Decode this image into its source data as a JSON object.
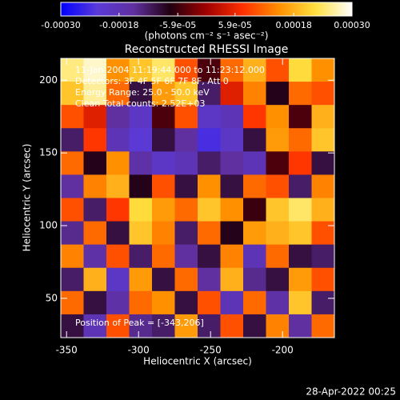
{
  "chart_data": {
    "type": "image",
    "title": "Reconstructed RHESSI Image",
    "xlabel": "Heliocentric X (arcsec)",
    "ylabel": "Heliocentric Y (arcsec)",
    "xlim": [
      -354,
      -164
    ],
    "ylim": [
      23,
      215
    ],
    "xticks": [
      -350,
      -300,
      -250,
      -200
    ],
    "yticks": [
      50,
      100,
      150,
      200
    ],
    "colorbar_label": "(photons cm⁻² s⁻¹ asec⁻²)",
    "colorbar_lim": [
      -0.0003,
      0.0003
    ],
    "colorbar_ticks": [
      {
        "value": -0.0003,
        "label": "-0.00030"
      },
      -0.00018,
      {
        "value": -5.9e-05,
        "label": "-5.9e-05"
      },
      {
        "value": 5.9e-05,
        "label": "5.9e-05"
      },
      0.00018,
      {
        "value": 0.0003,
        "label": "0.00030"
      }
    ],
    "colorscale": [
      "#0000ff",
      "#5a3ad8",
      "#6030a0",
      "#200010",
      "#a00000",
      "#ff3000",
      "#ff9000",
      "#ffe040",
      "#ffffff"
    ],
    "annotations": [
      "11-Jan-2004 11:19:44.000 to 11:23:12.000",
      "Detectors: 3F 4F 5F 6F 7F 8F, Att 0",
      "Energy Range: 25.0 - 50.0 keV",
      "Clean     Total counts: 2.52E+03",
      "Position of Peak = [-343,206]"
    ],
    "timestamp": "28-Apr-2022 00:25",
    "z": [
      [
        0.00025,
        0.00028,
        0.00015,
        0.0002,
        0.00024,
        0.0001,
        -5e-05,
        0.00012,
        0.00018,
        0.0001,
        0.00022,
        0.00015
      ],
      [
        0.0002,
        0.00026,
        0.00012,
        -0.0001,
        0.00016,
        0.0002,
        -0.00012,
        5e-05,
        0.00014,
        -8e-05,
        0.00012,
        0.0001
      ],
      [
        0.0001,
        5e-05,
        -0.00015,
        -0.0002,
        -5e-05,
        0.0001,
        -0.0002,
        -0.00018,
        8e-05,
        0.00015,
        -5e-05,
        0.00018
      ],
      [
        -0.00012,
        8e-05,
        -0.00018,
        -0.00022,
        -0.0001,
        -0.00015,
        -0.00024,
        -0.0002,
        -0.0001,
        0.00016,
        0.00012,
        0.0002
      ],
      [
        0.00012,
        -8e-05,
        0.00015,
        -0.00016,
        -0.0002,
        -0.00018,
        -0.00012,
        -0.00015,
        -0.00018,
        -5e-05,
        8e-05,
        -0.0001
      ],
      [
        -0.00015,
        0.00014,
        0.00018,
        -8e-05,
        0.0001,
        -0.0001,
        0.00015,
        -0.0001,
        0.00012,
        0.0001,
        -0.00012,
        0.00014
      ],
      [
        0.0001,
        -0.00012,
        8e-05,
        0.00022,
        0.00016,
        0.00012,
        0.0002,
        0.00015,
        -6e-05,
        0.0002,
        0.00024,
        0.00018
      ],
      [
        -0.00014,
        0.00012,
        -0.0001,
        0.0002,
        0.00014,
        -0.00012,
        0.00012,
        -8e-05,
        0.00016,
        0.00018,
        0.0002,
        0.0001
      ],
      [
        0.00014,
        -0.00016,
        0.0001,
        -0.00012,
        0.00012,
        -0.00015,
        -0.0001,
        0.00014,
        -0.00018,
        0.00012,
        -0.0001,
        -0.00012
      ],
      [
        -0.00012,
        0.00018,
        -0.0002,
        0.00016,
        -0.0001,
        0.00012,
        -0.00015,
        0.00018,
        -0.00014,
        -0.0001,
        0.00016,
        0.0001
      ],
      [
        0.00012,
        -0.0001,
        -0.00016,
        0.00012,
        0.00015,
        -0.0001,
        0.0001,
        -0.00018,
        0.00012,
        -0.00016,
        0.0002,
        -0.00012
      ],
      [
        -0.0001,
        -0.00018,
        0.0001,
        -0.00014,
        -0.00012,
        0.00016,
        -0.00012,
        0.0001,
        -0.0001,
        0.00014,
        -0.00015,
        0.00012
      ]
    ]
  }
}
